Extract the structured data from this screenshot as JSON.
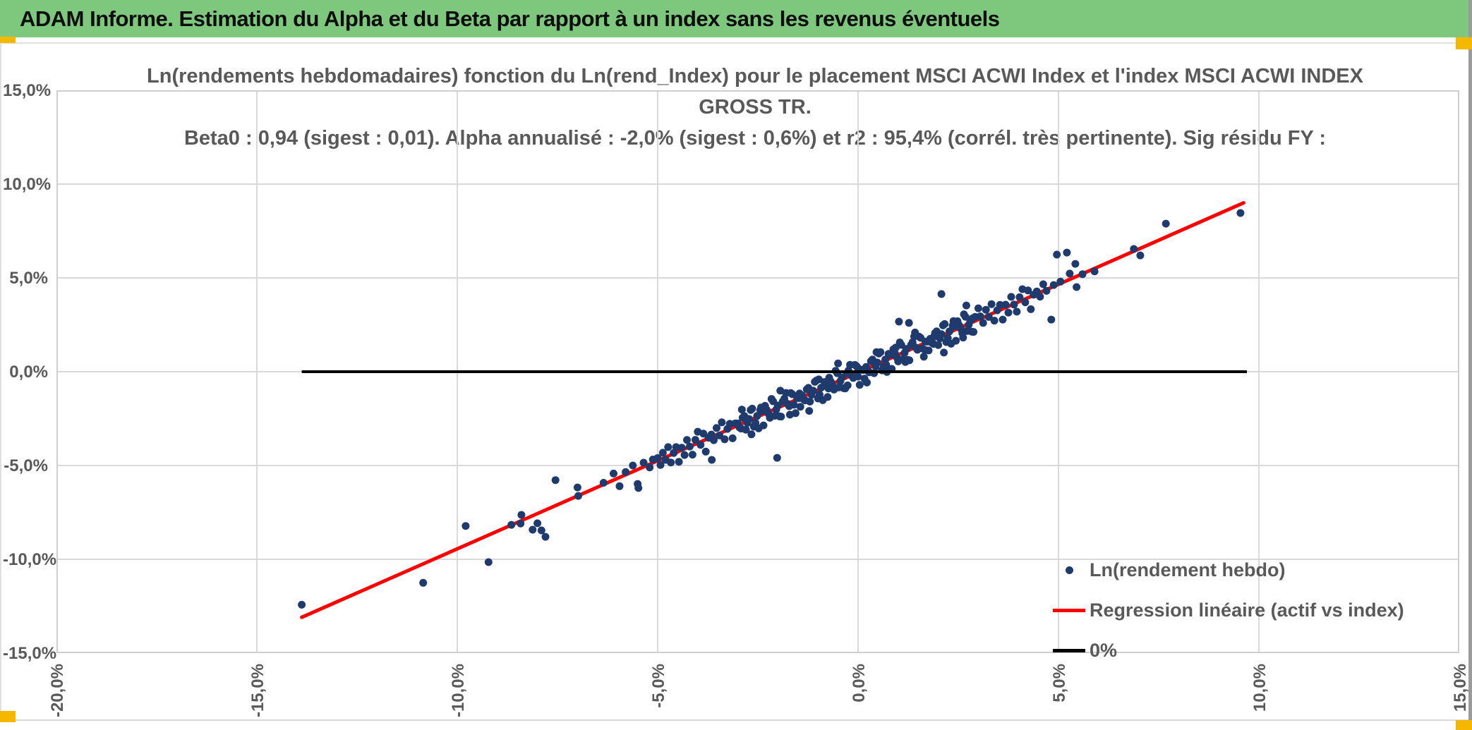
{
  "header": {
    "title": "ADAM Informe. Estimation du Alpha et du Beta par rapport à un index sans les revenus éventuels",
    "bg_color": "#7dc87d",
    "corner_color": "#f6b700"
  },
  "chart_data": {
    "type": "scatter",
    "title_line1": "Ln(rendements hebdomadaires) fonction du Ln(rend_Index) pour le placement MSCI ACWI Index et l'index MSCI ACWI INDEX GROSS TR.",
    "title_line2": "Beta0 : 0,94 (sigest : 0,01). Alpha annualisé : -2,0% (sigest : 0,6%) et r2 : 95,4% (corrél. très pertinente). Sig résidu FY :",
    "xlabel": "",
    "ylabel": "",
    "xlim": [
      -20,
      15
    ],
    "ylim": [
      -15,
      15
    ],
    "grid": true,
    "x_ticks": [
      -20,
      -15,
      -10,
      -5,
      0,
      5,
      10,
      15
    ],
    "x_tick_labels": [
      "-20,0%",
      "-15,0%",
      "-10,0%",
      "-5,0%",
      "0,0%",
      "5,0%",
      "10,0%",
      "15,0%"
    ],
    "y_ticks": [
      15,
      10,
      5,
      0,
      -5,
      -10,
      -15
    ],
    "y_tick_labels": [
      "15,0%",
      "10,0%",
      "5,0%",
      "0,0%",
      "-5,0%",
      "-10,0%",
      "-15,0%"
    ],
    "legend_position": "bottom-right-inside",
    "legend": [
      {
        "label": "Ln(rendement hebdo)",
        "marker": "dot",
        "color": "#1f3b6d"
      },
      {
        "label": "Regression linéaire (actif vs index)",
        "marker": "line",
        "color": "#ff0000"
      },
      {
        "label": "0%",
        "marker": "line",
        "color": "#000000"
      }
    ],
    "colors": {
      "point": "#1f3b6d",
      "regression": "#ff0000",
      "zero_line": "#000000",
      "grid": "#d9d9d9",
      "plot_border": "#cfcfcf",
      "axis_text": "#595959"
    },
    "regression_line": {
      "name": "Regression linéaire (actif vs index)",
      "x1": -13.88,
      "y1": -13.09,
      "x2": 9.62,
      "y2": 9.0,
      "beta": 0.94,
      "alpha_weekly": -0.04
    },
    "zero_line": {
      "name": "0%",
      "x1": -13.88,
      "y1": 0,
      "x2": 9.7,
      "y2": 0
    },
    "series": [
      {
        "name": "Ln(rendement hebdo)",
        "points": [
          [
            -3,
            -2.76
          ],
          [
            -2.92,
            -3.03
          ],
          [
            -2.84,
            -2.36
          ],
          [
            -2.76,
            -2.73
          ],
          [
            -2.68,
            -2.04
          ],
          [
            -2.6,
            -2.93
          ],
          [
            -2.52,
            -2.36
          ],
          [
            -2.44,
            -2.05
          ],
          [
            -2.36,
            -2.86
          ],
          [
            -2.28,
            -2.03
          ],
          [
            -2.2,
            -2.46
          ],
          [
            -2.12,
            -1.58
          ],
          [
            -2.04,
            -2.01
          ],
          [
            -1.96,
            -2.38
          ],
          [
            -1.88,
            -1.59
          ],
          [
            -1.8,
            -1.13
          ],
          [
            -1.72,
            -1.84
          ],
          [
            -1.64,
            -1.2
          ],
          [
            -1.56,
            -2.21
          ],
          [
            -1.48,
            -1.41
          ],
          [
            -1.4,
            -1.26
          ],
          [
            -1.32,
            -1.53
          ],
          [
            -1.24,
            -0.86
          ],
          [
            -1.16,
            -1.23
          ],
          [
            -1.08,
            -0.54
          ],
          [
            -1,
            -1.43
          ],
          [
            -0.92,
            -0.85
          ],
          [
            -0.84,
            -0.55
          ],
          [
            -0.76,
            -1.35
          ],
          [
            -0.68,
            -0.53
          ],
          [
            -0.6,
            -0.95
          ],
          [
            -0.52,
            -0.08
          ],
          [
            -0.44,
            -0.5
          ],
          [
            -0.36,
            -0.88
          ],
          [
            -0.28,
            -0.08
          ],
          [
            -0.2,
            0.37
          ],
          [
            -0.12,
            -0.33
          ],
          [
            -0.04,
            0.3
          ],
          [
            0.04,
            -0.7
          ],
          [
            0.12,
            0.09
          ],
          [
            0.2,
            0.25
          ],
          [
            0.28,
            -0.03
          ],
          [
            0.36,
            0.65
          ],
          [
            0.44,
            0.27
          ],
          [
            0.52,
            0.97
          ],
          [
            0.6,
            0.07
          ],
          [
            0.68,
            0.65
          ],
          [
            0.76,
            0.95
          ],
          [
            0.84,
            0.15
          ],
          [
            0.92,
            0.97
          ],
          [
            1,
            0.55
          ],
          [
            1.08,
            1.43
          ],
          [
            1.16,
            1
          ],
          [
            1.24,
            0.63
          ],
          [
            1.32,
            1.42
          ],
          [
            1.4,
            1.88
          ],
          [
            1.48,
            1.17
          ],
          [
            1.56,
            1.81
          ],
          [
            1.64,
            0.8
          ],
          [
            1.72,
            1.6
          ],
          [
            1.8,
            1.75
          ],
          [
            1.88,
            1.48
          ],
          [
            1.96,
            2.15
          ],
          [
            2.04,
            1.78
          ],
          [
            2.12,
            2.47
          ],
          [
            2.2,
            1.58
          ],
          [
            2.28,
            2.15
          ],
          [
            2.36,
            2.46
          ],
          [
            2.44,
            1.65
          ],
          [
            2.52,
            2.48
          ],
          [
            2.6,
            2.05
          ],
          [
            2.68,
            2.93
          ],
          [
            2.76,
            2.5
          ],
          [
            2.84,
            2.13
          ],
          [
            2.92,
            2.92
          ],
          [
            3,
            3.38
          ],
          [
            -2.96,
            -2.97
          ],
          [
            -2.88,
            -2.45
          ],
          [
            -2.8,
            -3.09
          ],
          [
            -2.72,
            -2.52
          ],
          [
            -2.64,
            -1.97
          ],
          [
            -2.56,
            -2.73
          ],
          [
            -2.48,
            -3.02
          ],
          [
            -2.4,
            -2.1
          ],
          [
            -2.32,
            -1.82
          ],
          [
            -2.24,
            -2.23
          ],
          [
            -2.16,
            -1.45
          ],
          [
            -2.08,
            -2.35
          ],
          [
            -2,
            -1.8
          ],
          [
            -1.92,
            -2.39
          ],
          [
            -1.84,
            -1.44
          ],
          [
            -1.76,
            -1.71
          ],
          [
            -1.68,
            -1.14
          ],
          [
            -1.6,
            -1.76
          ],
          [
            -1.52,
            -1.4
          ],
          [
            -1.44,
            -1.87
          ],
          [
            -1.36,
            -1.47
          ],
          [
            -1.28,
            -0.94
          ],
          [
            -1.2,
            -1.59
          ],
          [
            -1.12,
            -1.01
          ],
          [
            -1.04,
            -0.47
          ],
          [
            -0.96,
            -1.22
          ],
          [
            -0.88,
            -1.52
          ],
          [
            -0.8,
            -0.59
          ],
          [
            -0.72,
            -0.32
          ],
          [
            -0.64,
            -0.72
          ],
          [
            -0.56,
            0.05
          ],
          [
            -0.48,
            -0.84
          ],
          [
            -0.4,
            -0.3
          ],
          [
            -0.32,
            -0.89
          ],
          [
            -0.24,
            0.06
          ],
          [
            -0.16,
            -0.21
          ],
          [
            -0.08,
            0.36
          ],
          [
            0,
            -0.26
          ],
          [
            0.08,
            0.11
          ],
          [
            0.16,
            -0.37
          ],
          [
            0.24,
            0.04
          ],
          [
            0.32,
            0.56
          ],
          [
            0.4,
            -0.08
          ],
          [
            0.48,
            0.49
          ],
          [
            0.56,
            1.04
          ],
          [
            0.64,
            0.28
          ],
          [
            0.72,
            -0.01
          ],
          [
            0.8,
            0.91
          ],
          [
            0.88,
            1.19
          ],
          [
            0.96,
            0.78
          ],
          [
            1.04,
            1.56
          ],
          [
            1.12,
            0.66
          ],
          [
            1.2,
            1.21
          ],
          [
            1.28,
            0.61
          ],
          [
            1.36,
            1.57
          ],
          [
            1.44,
            1.29
          ],
          [
            1.52,
            1.87
          ],
          [
            1.6,
            1.24
          ],
          [
            1.68,
            1.61
          ],
          [
            1.76,
            1.13
          ],
          [
            1.84,
            1.54
          ],
          [
            1.92,
            2.06
          ],
          [
            2,
            1.42
          ],
          [
            2.08,
            2
          ],
          [
            2.16,
            2.54
          ],
          [
            2.24,
            1.79
          ],
          [
            2.32,
            1.49
          ],
          [
            2.4,
            2.42
          ],
          [
            2.48,
            2.69
          ],
          [
            2.56,
            2.29
          ],
          [
            2.64,
            3.06
          ],
          [
            2.72,
            2.17
          ],
          [
            2.8,
            2.71
          ],
          [
            2.88,
            2.12
          ],
          [
            -2.9,
            -2.02
          ],
          [
            -2.66,
            -3.34
          ],
          [
            -2.42,
            -1.91
          ],
          [
            -2.18,
            -2.39
          ],
          [
            -1.94,
            -1.01
          ],
          [
            -1.7,
            -2.29
          ],
          [
            -1.46,
            -1.16
          ],
          [
            -1.22,
            -2.09
          ],
          [
            -0.98,
            -0.41
          ],
          [
            -0.74,
            -0.89
          ],
          [
            -0.5,
            0.44
          ],
          [
            -0.26,
            -0.73
          ],
          [
            -0.02,
            0.24
          ],
          [
            0.22,
            -0.58
          ],
          [
            0.46,
            1.04
          ],
          [
            0.7,
            0.37
          ],
          [
            0.94,
            1.29
          ],
          [
            1.18,
            0.52
          ],
          [
            1.42,
            2.09
          ],
          [
            1.66,
            1.17
          ],
          [
            1.9,
            1.9
          ],
          [
            2.14,
            1.02
          ],
          [
            2.38,
            2.7
          ],
          [
            2.62,
            1.82
          ],
          [
            2.86,
            2.85
          ],
          [
            -5,
            -4.6
          ],
          [
            -4.93,
            -4.97
          ],
          [
            -4.87,
            -4.32
          ],
          [
            -4.8,
            -4.7
          ],
          [
            -4.74,
            -4.02
          ],
          [
            -4.67,
            -4.84
          ],
          [
            -4.6,
            -4.33
          ],
          [
            -4.54,
            -4.02
          ],
          [
            -4.47,
            -4.8
          ],
          [
            -4.4,
            -4.05
          ],
          [
            -4.33,
            -4.44
          ],
          [
            -4.27,
            -3.64
          ],
          [
            -4.2,
            -3.99
          ],
          [
            -4.13,
            -4.42
          ],
          [
            -4.06,
            -3.63
          ],
          [
            -4,
            -3.2
          ],
          [
            -3.93,
            -3.9
          ],
          [
            -3.86,
            -3.3
          ],
          [
            -3.8,
            -4.26
          ],
          [
            -3.73,
            -3.52
          ],
          [
            -3.66,
            -3.35
          ],
          [
            -3.6,
            -3.65
          ],
          [
            -3.53,
            -3
          ],
          [
            -3.46,
            -3.4
          ],
          [
            -3.4,
            -2.7
          ],
          [
            -3.33,
            -3.6
          ],
          [
            -3.26,
            -3.05
          ],
          [
            -3.2,
            -2.78
          ],
          [
            -3.13,
            -3.55
          ],
          [
            -3.06,
            -2.75
          ],
          [
            3.05,
            2.95
          ],
          [
            3.12,
            2.6
          ],
          [
            3.19,
            3.3
          ],
          [
            3.26,
            2.92
          ],
          [
            3.33,
            3.6
          ],
          [
            3.4,
            2.72
          ],
          [
            3.47,
            3.27
          ],
          [
            3.54,
            3.56
          ],
          [
            3.61,
            2.78
          ],
          [
            3.68,
            3.57
          ],
          [
            3.75,
            3.15
          ],
          [
            3.82,
            3.99
          ],
          [
            3.89,
            3.58
          ],
          [
            3.96,
            3.2
          ],
          [
            4.03,
            3.97
          ],
          [
            4.1,
            4.4
          ],
          [
            4.17,
            3.7
          ],
          [
            4.24,
            4.33
          ],
          [
            4.31,
            3.33
          ],
          [
            4.38,
            4.1
          ],
          [
            4.46,
            4.28
          ],
          [
            4.54,
            4
          ],
          [
            4.62,
            4.66
          ],
          [
            4.7,
            4.31
          ],
          [
            -13.88,
            -12.42
          ],
          [
            -10.85,
            -11.25
          ],
          [
            -9.79,
            -8.22
          ],
          [
            -9.22,
            -10.15
          ],
          [
            -8.65,
            -8.16
          ],
          [
            -8.42,
            -8.09
          ],
          [
            -8.4,
            -7.63
          ],
          [
            -8.12,
            -8.42
          ],
          [
            -8,
            -8.08
          ],
          [
            -7.9,
            -8.46
          ],
          [
            -7.8,
            -8.8
          ],
          [
            -7.55,
            -5.78
          ],
          [
            -7,
            -6.17
          ],
          [
            -6.98,
            -6.62
          ],
          [
            -6.35,
            -5.92
          ],
          [
            -6.1,
            -5.43
          ],
          [
            -5.95,
            -6.1
          ],
          [
            -5.8,
            -5.35
          ],
          [
            -5.62,
            -5
          ],
          [
            -5.5,
            -5.98
          ],
          [
            -5.48,
            -6.2
          ],
          [
            -5.35,
            -4.85
          ],
          [
            -5.2,
            -5.1
          ],
          [
            -5.12,
            -4.68
          ],
          [
            9.54,
            8.46
          ],
          [
            7.68,
            7.89
          ],
          [
            6.88,
            6.54
          ],
          [
            7.04,
            6.2
          ],
          [
            4.96,
            6.24
          ],
          [
            5.21,
            6.35
          ],
          [
            5.42,
            5.75
          ],
          [
            5.28,
            5.23
          ],
          [
            5.45,
            4.51
          ],
          [
            4.82,
            2.78
          ],
          [
            5.05,
            4.8
          ],
          [
            5.6,
            5.2
          ],
          [
            4.88,
            4.62
          ],
          [
            5.9,
            5.35
          ],
          [
            -2.02,
            -4.59
          ],
          [
            -3.65,
            -4.7
          ],
          [
            2.08,
            4.14
          ],
          [
            2.7,
            3.53
          ],
          [
            1.02,
            2.67
          ],
          [
            1.27,
            2.6
          ]
        ]
      }
    ]
  }
}
